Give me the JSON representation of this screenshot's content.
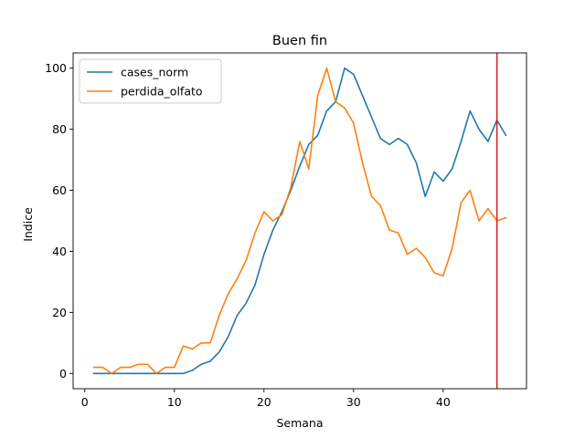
{
  "chart_data": {
    "type": "line",
    "title": "Buen fin",
    "xlabel": "Semana",
    "ylabel": "Indice",
    "xlim": [
      -1.3,
      49.3
    ],
    "ylim": [
      -5,
      105
    ],
    "xticks": [
      0,
      10,
      20,
      30,
      40
    ],
    "yticks": [
      0,
      20,
      40,
      60,
      80,
      100
    ],
    "grid": false,
    "legend_position": "upper left",
    "x": [
      1,
      2,
      3,
      4,
      5,
      6,
      7,
      8,
      9,
      10,
      11,
      12,
      13,
      14,
      15,
      16,
      17,
      18,
      19,
      20,
      21,
      22,
      23,
      24,
      25,
      26,
      27,
      28,
      29,
      30,
      31,
      32,
      33,
      34,
      35,
      36,
      37,
      38,
      39,
      40,
      41,
      42,
      43,
      44,
      45,
      46,
      47
    ],
    "series": [
      {
        "name": "cases_norm",
        "color": "#1f77b4",
        "values": [
          0,
          0,
          0,
          0,
          0,
          0,
          0,
          0,
          0,
          0,
          0,
          1,
          3,
          4,
          7,
          12,
          19,
          23,
          29,
          39,
          47,
          53,
          60,
          68,
          75,
          78,
          86,
          89,
          100,
          98,
          91,
          84,
          77,
          75,
          77,
          75,
          69,
          58,
          66,
          63,
          67,
          76,
          86,
          80,
          76,
          83,
          78
        ]
      },
      {
        "name": "perdida_olfato",
        "color": "#ff7f0e",
        "values": [
          2,
          2,
          0,
          2,
          2,
          3,
          3,
          0,
          2,
          2,
          9,
          8,
          10,
          10,
          19,
          26,
          31,
          37,
          46,
          53,
          50,
          52,
          61,
          76,
          67,
          91,
          100,
          89,
          87,
          82,
          69,
          58,
          55,
          47,
          46,
          39,
          41,
          38,
          33,
          32,
          41,
          56,
          60,
          50,
          54,
          50,
          51
        ]
      }
    ],
    "vline": {
      "x": 46,
      "color": "#d62728"
    }
  }
}
